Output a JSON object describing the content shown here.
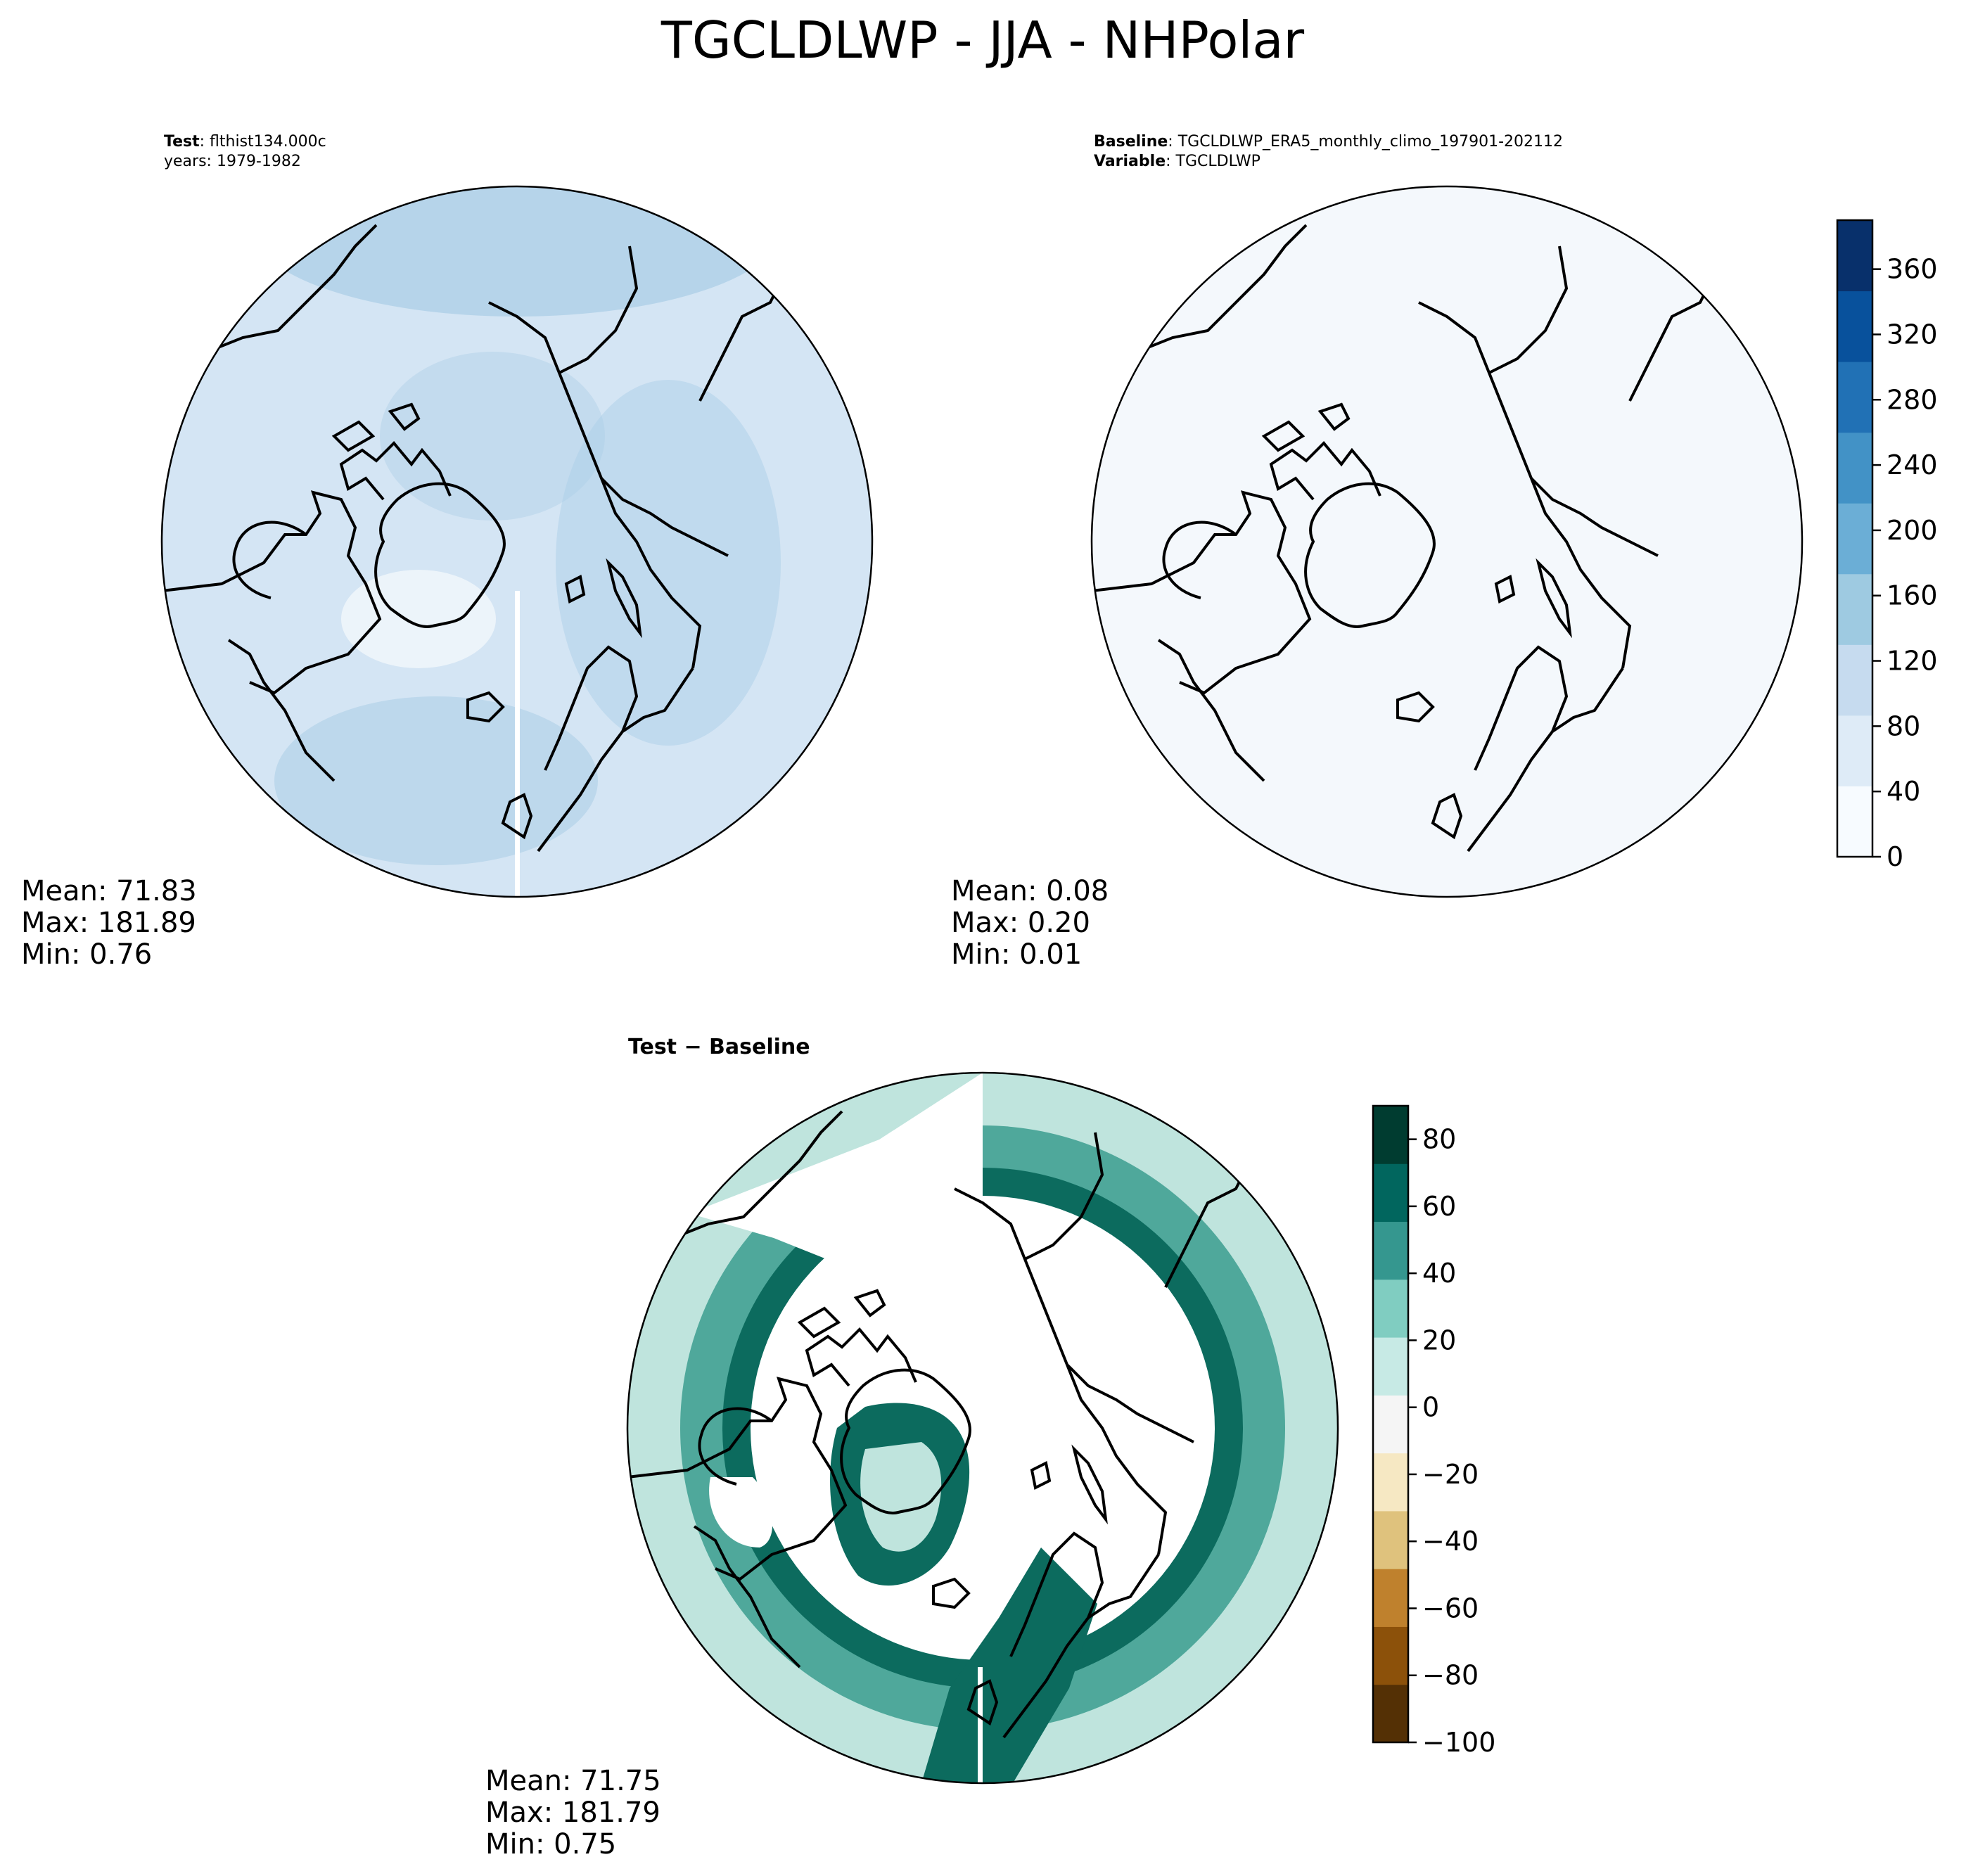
{
  "title": "TGCLDLWP - JJA - NHPolar",
  "panels": {
    "test": {
      "info_line1_bold": "Test",
      "info_line1_text": ": flthist134.000c",
      "info_line2": "years: 1979-1982",
      "stats": {
        "mean": "Mean: 71.83",
        "max": "Max: 181.89",
        "min": "Min:  0.76"
      }
    },
    "baseline": {
      "info_line1_bold": "Baseline",
      "info_line1_text": ": TGCLDLWP_ERA5_monthly_climo_197901-202112",
      "info_line2_bold": "Variable",
      "info_line2_text": ": TGCLDLWP",
      "stats": {
        "mean": "Mean:  0.08",
        "max": "Max:  0.20",
        "min": "Min:  0.01"
      }
    },
    "diff": {
      "title_bold": "Test − Baseline",
      "stats": {
        "mean": "Mean: 71.75",
        "max": "Max: 181.79",
        "min": "Min:  0.75"
      }
    }
  },
  "colorbars": {
    "main": {
      "min": 0,
      "max": 390,
      "ticks": [
        0,
        40,
        80,
        120,
        160,
        200,
        240,
        280,
        320,
        360
      ],
      "tick_labels": [
        "0",
        "40",
        "80",
        "120",
        "160",
        "200",
        "240",
        "280",
        "320",
        "360"
      ],
      "colors": [
        "#f7fbff",
        "#deebf7",
        "#c6dbef",
        "#9ecae1",
        "#6baed6",
        "#4292c6",
        "#2171b5",
        "#08519c",
        "#08306b"
      ]
    },
    "diff": {
      "min": -100,
      "max": 90,
      "ticks": [
        -100,
        -80,
        -60,
        -40,
        -20,
        0,
        20,
        40,
        60,
        80
      ],
      "tick_labels": [
        "−100",
        "−80",
        "−60",
        "−40",
        "−20",
        "0",
        "20",
        "40",
        "60",
        "80"
      ],
      "colors": [
        "#543005",
        "#8c510a",
        "#bf812d",
        "#dfc27d",
        "#f6e8c3",
        "#f5f5f5",
        "#c7eae5",
        "#80cdc1",
        "#35978f",
        "#01665e",
        "#003c30"
      ]
    }
  },
  "colors": {
    "test_base": "#d4e5f4",
    "test_dark": "#a9cde6",
    "baseline_fill": "#f4f8fc",
    "diff_dark": "#0c6b5e",
    "diff_mid": "#4fa89b",
    "diff_light": "#bfe4dd"
  }
}
